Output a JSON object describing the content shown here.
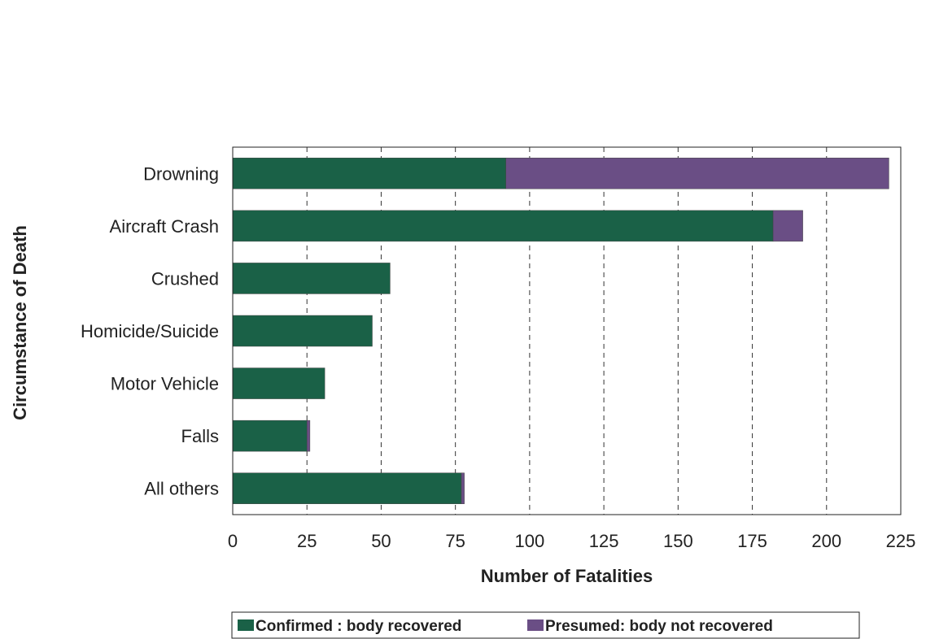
{
  "chart_data": {
    "type": "bar",
    "orientation": "horizontal",
    "stacked": true,
    "categories": [
      "Drowning",
      "Aircraft Crash",
      "Crushed",
      "Homicide/Suicide",
      "Motor Vehicle",
      "Falls",
      "All others"
    ],
    "series": [
      {
        "name": "Confirmed : body recovered",
        "color": "#1a6147",
        "values": [
          92,
          182,
          53,
          47,
          31,
          25,
          77
        ]
      },
      {
        "name": "Presumed: body not recovered",
        "color": "#6a4e85",
        "values": [
          129,
          10,
          0,
          0,
          0,
          1,
          1
        ]
      }
    ],
    "xlabel": "Number of Fatalities",
    "ylabel": "Circumstance of Death",
    "xlim": [
      0,
      225
    ],
    "xticks": [
      "0",
      "25",
      "50",
      "75",
      "100",
      "125",
      "150",
      "175",
      "200",
      "225"
    ],
    "grid": "vertical dashed",
    "legend_position": "bottom"
  }
}
